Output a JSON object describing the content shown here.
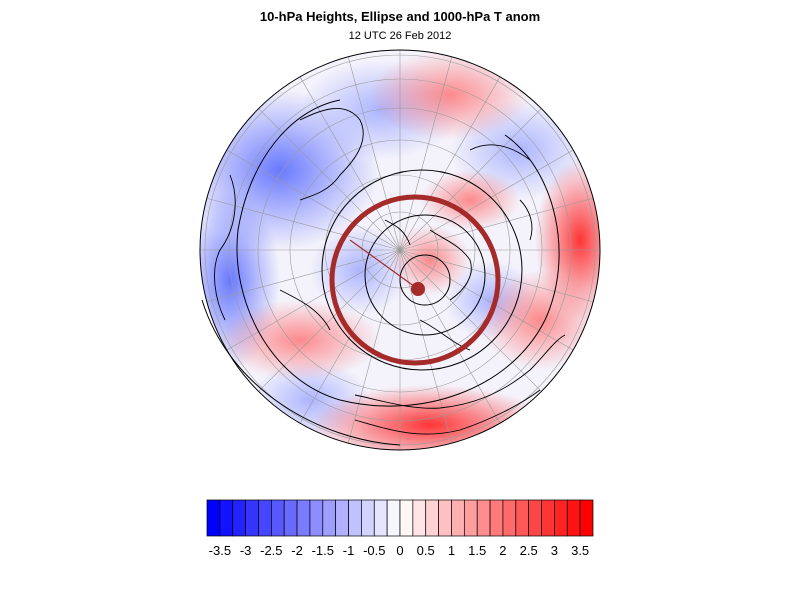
{
  "title": "10-hPa Heights, Ellipse and 1000-hPa T anom",
  "subtitle": "12 UTC 26 Feb 2012",
  "colorbar": {
    "min": -3.75,
    "max": 3.75,
    "step": 0.25,
    "low_color": "#0000ff",
    "mid_color": "#ffffff",
    "high_color": "#ff0000",
    "labels": [
      "-3.5",
      "-3",
      "-2.5",
      "-2",
      "-1.5",
      "-1",
      "-0.5",
      "0",
      "0.5",
      "1",
      "1.5",
      "2",
      "2.5",
      "3",
      "3.5"
    ]
  },
  "map": {
    "projection": "polar-orthographic",
    "ellipse_color": "#a52a2a",
    "contour_color": "#000000"
  }
}
